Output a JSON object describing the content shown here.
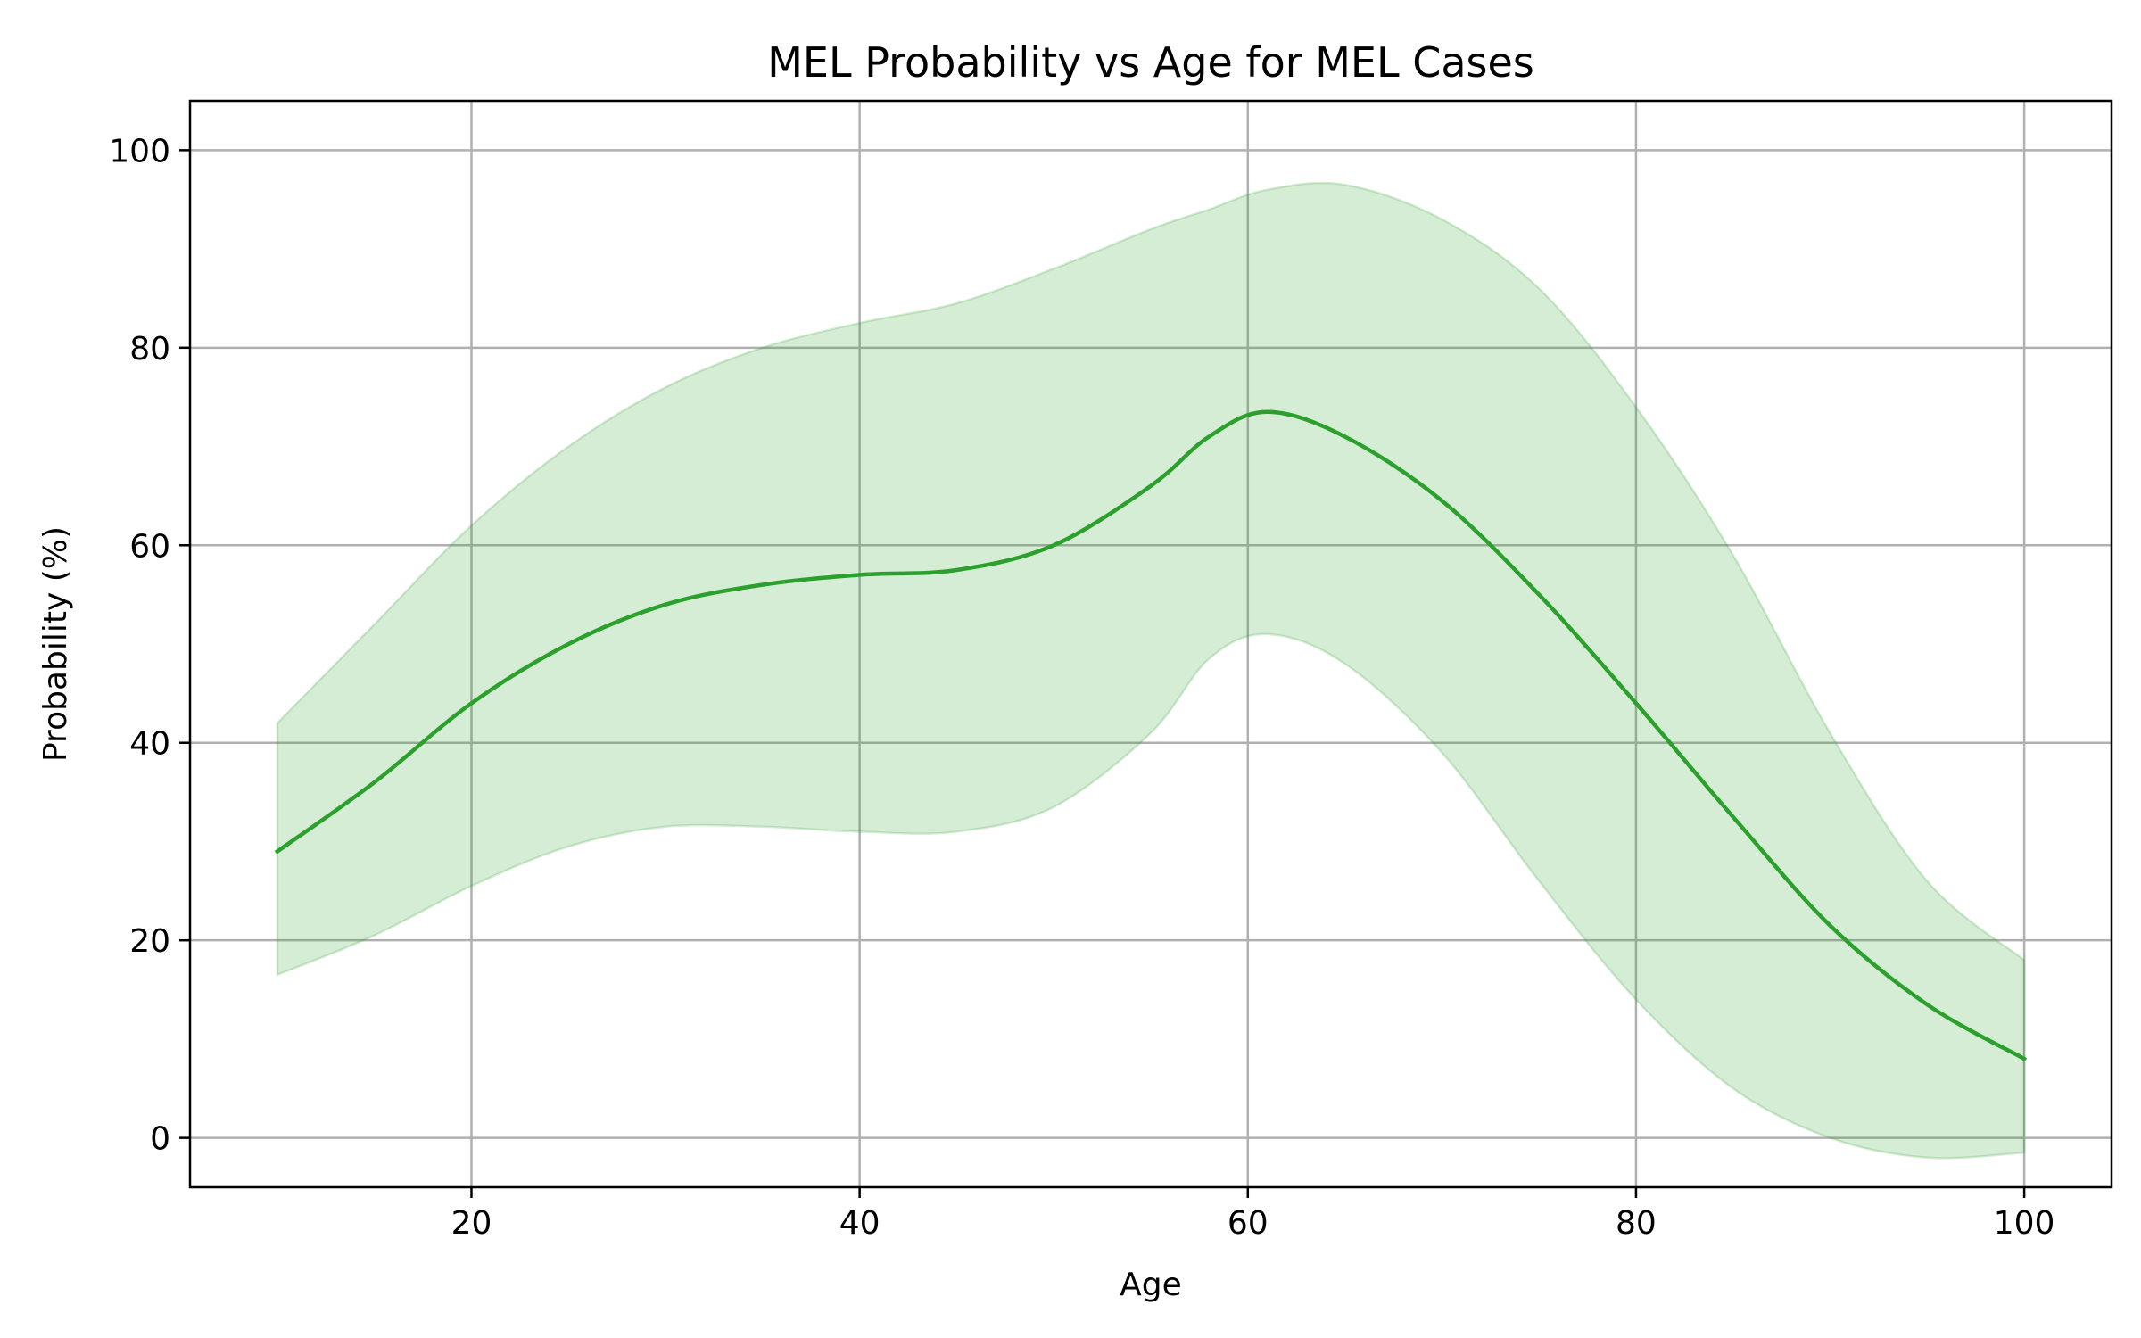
{
  "chart_data": {
    "type": "line",
    "title": "MEL Probability vs Age for MEL Cases",
    "xlabel": "Age",
    "ylabel": "Probability (%)",
    "xlim": [
      5.5,
      104.5
    ],
    "ylim": [
      -5,
      105
    ],
    "xticks": [
      20,
      40,
      60,
      80,
      100
    ],
    "yticks": [
      0,
      20,
      40,
      60,
      80,
      100
    ],
    "grid": true,
    "colors": {
      "line": "#2ca02c",
      "band": "#2ca02c"
    },
    "series": [
      {
        "x": [
          10,
          15,
          20,
          25,
          30,
          35,
          40,
          45,
          50,
          55,
          58,
          61,
          65,
          70,
          75,
          80,
          85,
          90,
          95,
          100
        ],
        "mean": [
          29,
          36,
          44,
          50,
          54,
          56,
          57,
          57.5,
          60,
          66,
          71,
          73.5,
          71,
          64.5,
          55,
          44,
          32.5,
          21.5,
          13.5,
          8
        ],
        "upper": [
          42,
          52,
          62,
          70,
          76,
          80,
          82.5,
          84.5,
          88,
          92,
          94,
          96,
          96.5,
          93,
          86,
          74,
          59,
          41,
          26,
          18
        ],
        "lower": [
          16.5,
          20.5,
          25.5,
          29.5,
          31.5,
          31.5,
          31,
          31,
          33.5,
          41,
          48.5,
          51,
          48,
          39,
          26,
          14,
          5,
          0,
          -2,
          -1.5
        ]
      }
    ]
  }
}
